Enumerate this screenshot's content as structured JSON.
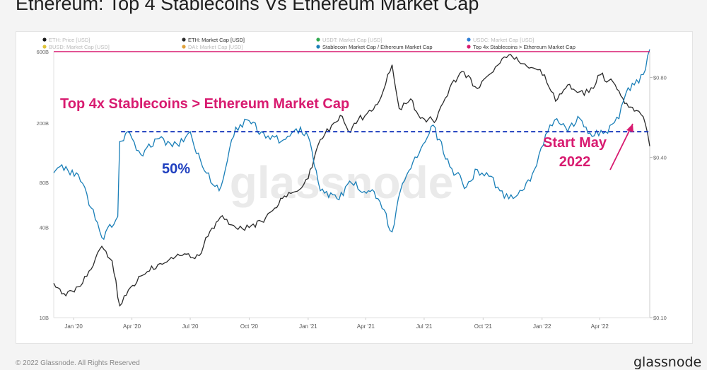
{
  "title": "Ethereum: Top 4 Stablecoins Vs Ethereum Market Cap",
  "footer": {
    "copyright": "© 2022 Glassnode. All Rights Reserved",
    "brand": "glassnode"
  },
  "watermark": "glassnode",
  "colors": {
    "eth_price": "#1a1a1a",
    "eth_market_cap": "#2b2b2b",
    "usdt": "#2fa84f",
    "usdc": "#2e7ed6",
    "busd": "#e0c43a",
    "dai": "#e0a13a",
    "ratio": "#1a7fb8",
    "top4_vs_eth": "#d81b70",
    "fifty_line": "#1f3fbf",
    "annotation": "#d81b70"
  },
  "legend": [
    {
      "label": "ETH: Price [USD]",
      "color": "#1a1a1a",
      "enabled": false
    },
    {
      "label": "ETH: Market Cap [USD]",
      "color": "#2b2b2b",
      "enabled": true
    },
    {
      "label": "USDT: Market Cap [USD]",
      "color": "#2fa84f",
      "enabled": false
    },
    {
      "label": "USDC: Market Cap [USD]",
      "color": "#2e7ed6",
      "enabled": false
    },
    {
      "label": "BUSD: Market Cap [USD]",
      "color": "#e0c43a",
      "enabled": false
    },
    {
      "label": "DAI: Market Cap [USD]",
      "color": "#e0a13a",
      "enabled": false
    },
    {
      "label": "Stablecoin Market Cap / Ethereum Market Cap",
      "color": "#1a7fb8",
      "enabled": true
    },
    {
      "label": "Top 4x Stablecoins > Ethereum Market Cap",
      "color": "#d81b70",
      "enabled": true
    }
  ],
  "annotations": {
    "parity_label": "Top 4x Stablecoins > Ethereum Market Cap",
    "fifty_label": "50%",
    "start_label_line1": "Start May",
    "start_label_line2": "2022"
  },
  "chart_data": {
    "type": "line",
    "x_ticks": [
      "Jan '20",
      "Apr '20",
      "Jul '20",
      "Oct '20",
      "Jan '21",
      "Apr '21",
      "Jul '21",
      "Oct '21",
      "Jan '22",
      "Apr '22"
    ],
    "y_left": {
      "scale": "log",
      "ticks": [
        "10B",
        "40B",
        "80B",
        "200B",
        "600B"
      ],
      "tick_values": [
        10,
        40,
        80,
        200,
        600
      ],
      "range": [
        10,
        600
      ]
    },
    "y_right": {
      "scale": "log",
      "ticks": [
        "$0.10",
        "$0.40",
        "$0.80"
      ],
      "tick_values": [
        0.1,
        0.4,
        0.8
      ],
      "range": [
        0.1,
        1.0
      ]
    },
    "series": [
      {
        "name": "ETH: Market Cap [USD]",
        "axis": "left",
        "unit": "B USD",
        "points": [
          [
            "2019-12-01",
            17
          ],
          [
            "2019-12-20",
            14
          ],
          [
            "2020-01-15",
            17
          ],
          [
            "2020-02-14",
            30
          ],
          [
            "2020-03-01",
            24
          ],
          [
            "2020-03-13",
            12
          ],
          [
            "2020-03-20",
            14
          ],
          [
            "2020-04-15",
            19
          ],
          [
            "2020-05-15",
            23
          ],
          [
            "2020-06-15",
            26
          ],
          [
            "2020-07-15",
            26
          ],
          [
            "2020-08-01",
            38
          ],
          [
            "2020-08-20",
            48
          ],
          [
            "2020-09-10",
            40
          ],
          [
            "2020-10-01",
            40
          ],
          [
            "2020-10-20",
            44
          ],
          [
            "2020-11-10",
            54
          ],
          [
            "2020-11-25",
            65
          ],
          [
            "2020-12-15",
            70
          ],
          [
            "2021-01-01",
            85
          ],
          [
            "2021-01-20",
            155
          ],
          [
            "2021-02-10",
            200
          ],
          [
            "2021-02-20",
            225
          ],
          [
            "2021-03-05",
            175
          ],
          [
            "2021-03-20",
            210
          ],
          [
            "2021-04-10",
            240
          ],
          [
            "2021-04-25",
            300
          ],
          [
            "2021-05-12",
            490
          ],
          [
            "2021-05-23",
            250
          ],
          [
            "2021-06-10",
            290
          ],
          [
            "2021-06-25",
            215
          ],
          [
            "2021-07-20",
            210
          ],
          [
            "2021-08-10",
            345
          ],
          [
            "2021-09-01",
            440
          ],
          [
            "2021-09-22",
            340
          ],
          [
            "2021-10-10",
            420
          ],
          [
            "2021-11-10",
            570
          ],
          [
            "2021-11-25",
            520
          ],
          [
            "2021-12-15",
            470
          ],
          [
            "2022-01-05",
            420
          ],
          [
            "2022-01-22",
            280
          ],
          [
            "2022-02-10",
            360
          ],
          [
            "2022-02-25",
            320
          ],
          [
            "2022-03-15",
            320
          ],
          [
            "2022-04-02",
            420
          ],
          [
            "2022-04-25",
            360
          ],
          [
            "2022-05-10",
            270
          ],
          [
            "2022-05-25",
            240
          ],
          [
            "2022-06-08",
            220
          ],
          [
            "2022-06-18",
            140
          ]
        ]
      },
      {
        "name": "Stablecoin Market Cap / Ethereum Market Cap",
        "axis": "right",
        "unit": "ratio",
        "points": [
          [
            "2019-12-01",
            0.35
          ],
          [
            "2019-12-20",
            0.37
          ],
          [
            "2020-01-15",
            0.32
          ],
          [
            "2020-02-14",
            0.2
          ],
          [
            "2020-03-10",
            0.24
          ],
          [
            "2020-03-13",
            0.46
          ],
          [
            "2020-03-25",
            0.5
          ],
          [
            "2020-04-15",
            0.41
          ],
          [
            "2020-05-10",
            0.47
          ],
          [
            "2020-06-10",
            0.45
          ],
          [
            "2020-07-01",
            0.5
          ],
          [
            "2020-07-20",
            0.37
          ],
          [
            "2020-08-15",
            0.3
          ],
          [
            "2020-09-10",
            0.52
          ],
          [
            "2020-10-01",
            0.55
          ],
          [
            "2020-10-20",
            0.5
          ],
          [
            "2020-11-20",
            0.46
          ],
          [
            "2020-12-20",
            0.52
          ],
          [
            "2021-01-01",
            0.48
          ],
          [
            "2021-01-20",
            0.3
          ],
          [
            "2021-02-15",
            0.28
          ],
          [
            "2021-03-10",
            0.32
          ],
          [
            "2021-04-05",
            0.3
          ],
          [
            "2021-04-20",
            0.28
          ],
          [
            "2021-05-12",
            0.21
          ],
          [
            "2021-05-25",
            0.3
          ],
          [
            "2021-06-20",
            0.4
          ],
          [
            "2021-07-15",
            0.53
          ],
          [
            "2021-08-10",
            0.37
          ],
          [
            "2021-09-05",
            0.31
          ],
          [
            "2021-09-22",
            0.36
          ],
          [
            "2021-10-10",
            0.34
          ],
          [
            "2021-11-10",
            0.28
          ],
          [
            "2021-12-01",
            0.3
          ],
          [
            "2021-12-20",
            0.36
          ],
          [
            "2022-01-10",
            0.5
          ],
          [
            "2022-01-24",
            0.56
          ],
          [
            "2022-02-10",
            0.5
          ],
          [
            "2022-03-01",
            0.56
          ],
          [
            "2022-03-20",
            0.48
          ],
          [
            "2022-04-10",
            0.5
          ],
          [
            "2022-05-01",
            0.56
          ],
          [
            "2022-05-12",
            0.7
          ],
          [
            "2022-05-25",
            0.75
          ],
          [
            "2022-06-08",
            0.82
          ],
          [
            "2022-06-18",
            1.02
          ]
        ]
      },
      {
        "name": "Top 4x Stablecoins > Ethereum Market Cap",
        "axis": "right",
        "unit": "ratio",
        "points": [
          [
            "2019-12-01",
            1.0
          ],
          [
            "2022-06-18",
            1.0
          ]
        ]
      },
      {
        "name": "50%",
        "axis": "right",
        "unit": "ratio",
        "points": [
          [
            "2020-03-15",
            0.5
          ],
          [
            "2022-06-18",
            0.5
          ]
        ]
      }
    ]
  }
}
